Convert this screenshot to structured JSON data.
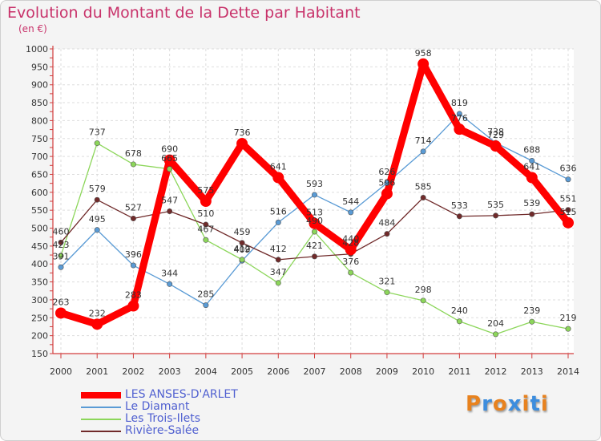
{
  "title": "Evolution du Montant de la Dette par Habitant",
  "subtitle": "(en €)",
  "logo": {
    "text": "Proxiti",
    "colors": [
      "#e8821e",
      "#3c8dde",
      "#e8821e",
      "#3c8dde",
      "#e8821e",
      "#3c8dde",
      "#e8821e"
    ]
  },
  "chart_data": {
    "type": "line",
    "title": "Evolution du Montant de la Dette par Habitant",
    "subtitle": "(en €)",
    "xlabel": "",
    "ylabel": "",
    "x": [
      2000,
      2001,
      2002,
      2003,
      2004,
      2005,
      2006,
      2007,
      2008,
      2009,
      2010,
      2011,
      2012,
      2013,
      2014
    ],
    "ylim": [
      150,
      1000
    ],
    "yticks": [
      150,
      200,
      250,
      300,
      350,
      400,
      450,
      500,
      550,
      600,
      650,
      700,
      750,
      800,
      850,
      900,
      950,
      1000
    ],
    "grid": true,
    "legend_position": "bottom-left",
    "series": [
      {
        "name": "Le Diamant",
        "color": "#5a9bd5",
        "values": [
          391,
          495,
          396,
          344,
          285,
          409,
          516,
          593,
          544,
          626,
          714,
          819,
          738,
          688,
          636
        ]
      },
      {
        "name": "Les Trois-Ilets",
        "color": "#8cd65a",
        "values": [
          423,
          737,
          678,
          665,
          467,
          412,
          347,
          490,
          376,
          321,
          298,
          240,
          204,
          239,
          219
        ]
      },
      {
        "name": "Rivière-Salée",
        "color": "#702a2a",
        "values": [
          460,
          579,
          527,
          547,
          510,
          459,
          412,
          421,
          428,
          484,
          585,
          533,
          535,
          539,
          551
        ]
      },
      {
        "name": "LES ANSES-D'ARLET",
        "color": "#ff0000",
        "values": [
          263,
          232,
          283,
          690,
          575,
          736,
          641,
          513,
          440,
          596,
          958,
          776,
          729,
          641,
          515
        ]
      }
    ],
    "legend_order": [
      "LES ANSES-D'ARLET",
      "Le Diamant",
      "Les Trois-Ilets",
      "Rivière-Salée"
    ]
  }
}
